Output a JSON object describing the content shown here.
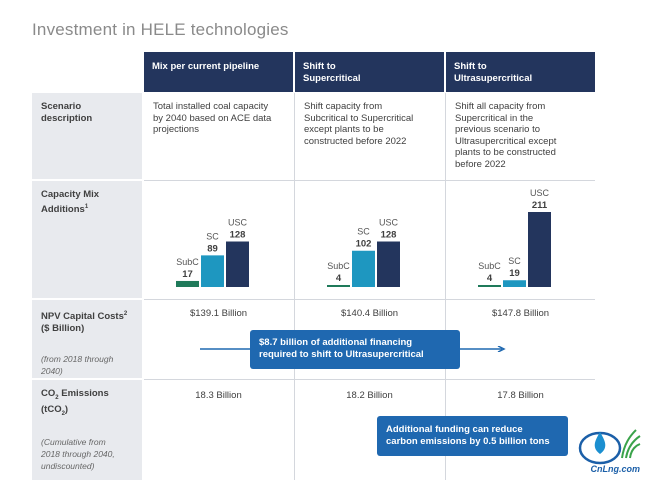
{
  "title": "Investment in HELE technologies",
  "columns": [
    {
      "header_line1": "Mix per current pipeline",
      "header_line2": ""
    },
    {
      "header_line1": "Shift to",
      "header_line2": "Supercritical"
    },
    {
      "header_line1": "Shift to",
      "header_line2": "Ultrasupercritical"
    }
  ],
  "rows": {
    "scenario": {
      "label_line1": "Scenario",
      "label_line2": "description"
    },
    "capacity": {
      "label_line1": "Capacity Mix",
      "label_line2": "Additions",
      "sup": "1"
    },
    "npv": {
      "label_line1": "NPV Capital Costs",
      "label_sup": "2",
      "label_line2": "($ Billion)",
      "note_line1": "(from 2018 through",
      "note_line2": "2040)"
    },
    "co2": {
      "label_line1_a": "CO",
      "label_line1_sub": "2",
      "label_line1_b": " Emissions",
      "label_line2_a": "(tCO",
      "label_line2_sub": "2",
      "label_line2_b": ")",
      "note_line1": "(Cumulative from",
      "note_line2": "2018 through 2040,",
      "note_line3": "undiscounted)"
    }
  },
  "descriptions": [
    [
      "Total installed coal capacity",
      "by 2040 based on ACE data",
      "projections"
    ],
    [
      "Shift capacity from",
      "Subcritical to Supercritical",
      "except plants to be",
      "constructed before 2022"
    ],
    [
      "Shift all capacity from",
      "Supercritical in the",
      "previous scenario to",
      "Ultrasupercritical except",
      "plants to be constructed",
      "before 2022"
    ]
  ],
  "npv_values": [
    "$139.1 Billion",
    "$140.4 Billion",
    "$147.8 Billion"
  ],
  "co2_values": [
    "18.3 Billion",
    "18.2 Billion",
    "17.8 Billion"
  ],
  "banners": {
    "financing_line1": "$8.7 billion of additional financing",
    "financing_line2": "required to shift to Ultrasupercritical",
    "emissions_line1": "Additional funding can reduce",
    "emissions_line2": "carbon emissions by 0.5 billion tons"
  },
  "watermark": "CnLng.com",
  "colors": {
    "header": "#23355d",
    "subc": "#1f7a5a",
    "sc": "#1e97c0",
    "usc": "#23355d",
    "banner": "#1f68b0"
  },
  "chart_data": [
    {
      "type": "bar",
      "categories": [
        "SubC",
        "SC",
        "USC"
      ],
      "values": [
        17,
        89,
        128
      ]
    },
    {
      "type": "bar",
      "categories": [
        "SubC",
        "SC",
        "USC"
      ],
      "values": [
        4,
        102,
        128
      ]
    },
    {
      "type": "bar",
      "categories": [
        "SubC",
        "SC",
        "USC"
      ],
      "values": [
        4,
        19,
        211
      ]
    }
  ]
}
